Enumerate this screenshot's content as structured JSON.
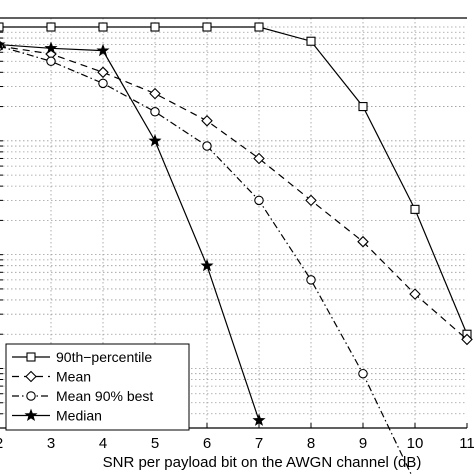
{
  "chart_data": {
    "type": "line",
    "title": "",
    "xlabel": "SNR per payload bit on the AWGN channel (dB)",
    "ylabel": "",
    "xlim": [
      2,
      11
    ],
    "ylim": [
      0.0003,
      1.2
    ],
    "y_scale": "log",
    "grid": true,
    "x_ticks": [
      "2",
      "3",
      "4",
      "5",
      "6",
      "7",
      "8",
      "9",
      "10",
      "11"
    ],
    "legend": {
      "position": "bottom-left"
    },
    "series": [
      {
        "name": "90th−percentile",
        "marker": "square",
        "line": "solid",
        "x": [
          2,
          3,
          4,
          5,
          6,
          7,
          8,
          9,
          10,
          11
        ],
        "y": [
          1.0,
          1.0,
          1.0,
          1.0,
          1.0,
          1.0,
          0.75,
          0.2,
          0.025,
          0.002
        ]
      },
      {
        "name": "Mean",
        "marker": "diamond",
        "line": "dashed",
        "x": [
          2,
          3,
          4,
          5,
          6,
          7,
          8,
          9,
          10,
          11
        ],
        "y": [
          0.68,
          0.58,
          0.4,
          0.26,
          0.15,
          0.07,
          0.03,
          0.013,
          0.0045,
          0.0018
        ]
      },
      {
        "name": "Mean 90% best",
        "marker": "circle",
        "line": "dashdot",
        "x": [
          2,
          3,
          4,
          5,
          6,
          7,
          8,
          9,
          10
        ],
        "y": [
          0.68,
          0.5,
          0.32,
          0.18,
          0.09,
          0.03,
          0.006,
          0.0009,
          0.0001
        ]
      },
      {
        "name": "Median",
        "marker": "star",
        "line": "solid",
        "x": [
          2,
          3,
          4,
          5,
          6,
          7
        ],
        "y": [
          0.7,
          0.65,
          0.62,
          0.1,
          0.008,
          0.00035
        ]
      }
    ]
  }
}
